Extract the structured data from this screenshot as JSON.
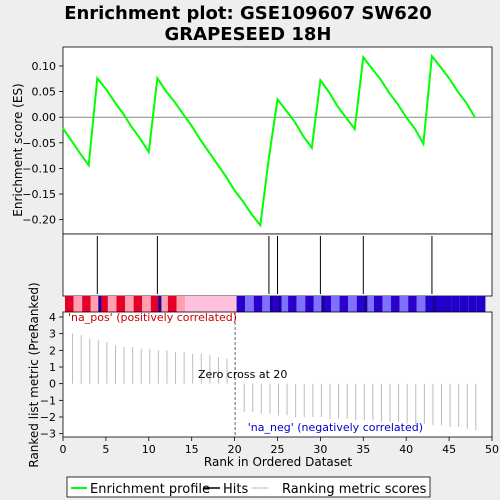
{
  "chart_data": {
    "type": "line",
    "title_lines": [
      "Enrichment plot: GSE109607 SW620",
      "GRAPESEED 18H"
    ],
    "es_panel": {
      "ylabel": "Enrichment score (ES)",
      "ylim": [
        -0.228,
        0.137
      ],
      "yticks": [
        0.1,
        0.05,
        0.0,
        -0.05,
        -0.1,
        -0.15,
        -0.2
      ],
      "ytick_labels": [
        "0.10",
        "0.05",
        "0.00",
        "−0.05",
        "−0.10",
        "−0.15",
        "−0.20"
      ],
      "series": [
        {
          "name": "Enrichment profile",
          "color": "#00ff00",
          "x": [
            0,
            1,
            2,
            3,
            4,
            5,
            6,
            7,
            8,
            9,
            10,
            11,
            12,
            13,
            14,
            15,
            16,
            17,
            18,
            19,
            20,
            21,
            22,
            23,
            24,
            25,
            26,
            27,
            28,
            29,
            30,
            31,
            32,
            33,
            34,
            35,
            36,
            37,
            38,
            39,
            40,
            41,
            42,
            43,
            44,
            45,
            46,
            47,
            48
          ],
          "y": [
            -0.022,
            -0.046,
            -0.071,
            -0.094,
            0.076,
            0.055,
            0.03,
            0.007,
            -0.019,
            -0.042,
            -0.068,
            0.076,
            0.051,
            0.03,
            0.006,
            -0.017,
            -0.044,
            -0.068,
            -0.092,
            -0.116,
            -0.143,
            -0.165,
            -0.19,
            -0.211,
            -0.079,
            0.035,
            0.013,
            -0.009,
            -0.037,
            -0.06,
            0.072,
            0.049,
            0.021,
            -0.001,
            -0.023,
            0.117,
            0.095,
            0.074,
            0.048,
            0.026,
            0.0,
            -0.022,
            -0.052,
            0.119,
            0.098,
            0.076,
            0.05,
            0.028,
            0.0
          ]
        }
      ]
    },
    "hits": {
      "name": "Hits",
      "color": "#000000",
      "x": [
        4,
        11,
        24,
        25,
        30,
        35,
        43
      ]
    },
    "ranking_panel": {
      "ylabel": "Ranked list metric (PreRanked)",
      "ylim": [
        -3.2,
        4.3
      ],
      "yticks": [
        4,
        3,
        2,
        1,
        0,
        -1,
        -2,
        -3
      ],
      "ytick_labels": [
        "4",
        "3",
        "2",
        "1",
        "0",
        "−1",
        "−2",
        "−3"
      ],
      "series": [
        {
          "name": "Ranking metric scores",
          "color": "#bbbbbb",
          "x": [
            1,
            2,
            3,
            4,
            5,
            6,
            7,
            8,
            9,
            10,
            11,
            12,
            13,
            14,
            15,
            16,
            17,
            18,
            19,
            21,
            22,
            23,
            24,
            25,
            26,
            27,
            28,
            29,
            30,
            31,
            32,
            33,
            34,
            35,
            36,
            37,
            38,
            39,
            40,
            41,
            42,
            43,
            44,
            45,
            46,
            47,
            48
          ],
          "values": [
            3.0,
            2.9,
            2.7,
            2.6,
            2.5,
            2.3,
            2.2,
            2.2,
            2.1,
            2.1,
            2.0,
            2.0,
            1.9,
            1.9,
            1.8,
            1.8,
            1.7,
            1.6,
            1.5,
            -1.7,
            -1.7,
            -1.8,
            -1.8,
            -1.9,
            -1.9,
            -2.0,
            -2.0,
            -2.0,
            -2.0,
            -2.1,
            -2.1,
            -2.1,
            -2.2,
            -2.2,
            -2.2,
            -2.3,
            -2.3,
            -2.3,
            -2.4,
            -2.4,
            -2.4,
            -2.5,
            -2.5,
            -2.6,
            -2.6,
            -2.7,
            -2.8
          ]
        }
      ],
      "zero_cross": 20,
      "zero_cross_label": "Zero cross at 20",
      "pos_label": "'na_pos' (positively correlated)",
      "neg_label": "'na_neg' (negatively correlated)",
      "pos_color": "#cc0000",
      "neg_color": "#0000cc"
    },
    "xaxis": {
      "xlabel": "Rank in Ordered Dataset",
      "xlim": [
        0,
        50
      ],
      "xticks": [
        0,
        5,
        10,
        15,
        20,
        25,
        30,
        35,
        40,
        45,
        50
      ]
    },
    "legend": {
      "placement": "bottom",
      "items": [
        {
          "label": "Enrichment profile",
          "color": "#00ff00"
        },
        {
          "label": "Hits",
          "color": "#000000"
        },
        {
          "label": "Ranking metric scores",
          "color": "#bbbbbb"
        }
      ]
    }
  }
}
